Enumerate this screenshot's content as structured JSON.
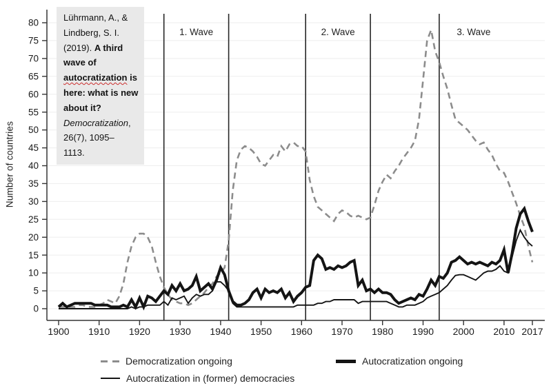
{
  "figure": {
    "background": "#ffffff"
  },
  "citation": {
    "bg_color": "#e9e9e9",
    "lines": [
      [
        {
          "t": "Lührmann, A., &"
        }
      ],
      [
        {
          "t": "Lindberg, S. I."
        }
      ],
      [
        {
          "t": "(2019). "
        },
        {
          "t": "A third",
          "b": true
        }
      ],
      [
        {
          "t": "wave of",
          "b": true
        }
      ],
      [
        {
          "t": "autocratization",
          "b": true,
          "sq": true
        },
        {
          "t": " is",
          "b": true
        }
      ],
      [
        {
          "t": "here: what is new",
          "b": true
        }
      ],
      [
        {
          "t": "about it?",
          "b": true
        }
      ],
      [
        {
          "t": "Democratization",
          "i": true
        },
        {
          "t": ","
        }
      ],
      [
        {
          "t": "26(7), 1095–"
        }
      ],
      [
        {
          "t": "1113."
        }
      ]
    ]
  },
  "legend": {
    "items": [
      {
        "label": "Democratization ongoing",
        "style": "dashed"
      },
      {
        "label": "Autocratization ongoing",
        "style": "thick"
      },
      {
        "label": "Autocratization in (former) democracies",
        "style": "thin"
      }
    ]
  },
  "chart_data": {
    "type": "line",
    "title": "",
    "xlabel": "",
    "ylabel": "Number of countries",
    "grid": true,
    "grid_color": "#ededed",
    "axis_color": "#333333",
    "ylim": [
      0,
      80
    ],
    "x_range": {
      "start": 1900,
      "end": 2017,
      "step": 1
    },
    "x_ticks": [
      1900,
      1910,
      1920,
      1930,
      1940,
      1950,
      1960,
      1970,
      1980,
      1990,
      2000,
      2010,
      2017
    ],
    "y_ticks": [
      0,
      5,
      10,
      15,
      20,
      25,
      30,
      35,
      40,
      45,
      50,
      55,
      60,
      65,
      70,
      75,
      80
    ],
    "wave_dividers": [
      {
        "year": 1926
      },
      {
        "year": 1942
      },
      {
        "year": 1961
      },
      {
        "year": 1977
      },
      {
        "year": 1994
      }
    ],
    "wave_labels": [
      {
        "text": "1. Wave",
        "between": [
          1926,
          1942
        ]
      },
      {
        "text": "2. Wave",
        "between": [
          1961,
          1977
        ]
      },
      {
        "text": "3. Wave",
        "between": [
          1994,
          2011
        ]
      }
    ],
    "legend_position": "bottom",
    "series": [
      {
        "name": "Democratization ongoing",
        "slug": "democratization-ongoing",
        "line": "dashed",
        "color": "#8c8c8c",
        "width": 2.6,
        "dash": "9 6",
        "values": [
          0.5,
          0.5,
          0.5,
          0.5,
          0.5,
          1,
          1,
          0.5,
          0.5,
          0.5,
          1,
          1.5,
          2.5,
          2,
          1.5,
          3.5,
          7,
          13,
          17.5,
          20,
          21,
          21,
          20,
          17.5,
          13,
          9,
          6,
          4,
          2.5,
          2,
          1.5,
          1.5,
          1,
          1.5,
          2.5,
          3.5,
          4.5,
          6,
          7,
          9,
          10,
          11.5,
          19,
          33,
          41.5,
          44.5,
          45.5,
          45,
          44,
          42.5,
          40.5,
          40,
          41.5,
          43,
          42.5,
          45.5,
          44,
          46,
          46.5,
          45.5,
          45.5,
          44,
          36,
          31.5,
          28.5,
          27.5,
          26.5,
          25.5,
          24.5,
          26.5,
          27.5,
          27,
          26,
          25.5,
          26,
          25.5,
          25,
          25.5,
          29,
          33,
          35.5,
          37.5,
          36.5,
          38.5,
          40,
          42,
          43.5,
          45,
          47,
          53,
          64,
          75,
          78,
          72,
          69,
          65,
          61.5,
          57,
          53,
          52,
          51,
          50,
          48.5,
          47,
          46,
          46.5,
          44.5,
          43,
          40.5,
          38.5,
          38,
          35.5,
          32.5,
          29.5,
          26,
          23,
          17.5,
          13
        ]
      },
      {
        "name": "Autocratization in (former) democracies",
        "slug": "autocratization-in-former-democracies",
        "line": "solid",
        "color": "#141414",
        "width": 1.9,
        "dash": null,
        "values": [
          0,
          0,
          0,
          0,
          0,
          0,
          0,
          0,
          0,
          0,
          0,
          0,
          0,
          0,
          0,
          0,
          0,
          0,
          0.5,
          0,
          0.5,
          0.5,
          1,
          1,
          1,
          1,
          2,
          1,
          3,
          2.5,
          3,
          3.5,
          1.5,
          3,
          4,
          3.5,
          4,
          4,
          5,
          7.5,
          7.5,
          6.5,
          5,
          1.5,
          0.5,
          0.5,
          0.5,
          0.5,
          0.5,
          0.5,
          0.5,
          0.5,
          0.5,
          0.5,
          0.5,
          0.5,
          0.5,
          0.5,
          0.5,
          1,
          1,
          1,
          1,
          1,
          1.5,
          1.5,
          2,
          2,
          2.5,
          2.5,
          2.5,
          2.5,
          2.5,
          2.5,
          1.5,
          2,
          2,
          2,
          2,
          2,
          2,
          2,
          1.5,
          1,
          0.5,
          0.5,
          1,
          1,
          1,
          1.5,
          2,
          3,
          3.5,
          4,
          4.5,
          5.5,
          6.5,
          8,
          9.3,
          9.5,
          9.5,
          9,
          8.5,
          8,
          9,
          10,
          10.5,
          10.5,
          11,
          12,
          10.5,
          10,
          14.5,
          19,
          22,
          20,
          18.5,
          17.5
        ]
      },
      {
        "name": "Autocratization ongoing",
        "slug": "autocratization-ongoing",
        "line": "solid",
        "color": "#141414",
        "width": 4,
        "dash": null,
        "values": [
          0.5,
          1.5,
          0.5,
          1,
          1.5,
          1.5,
          1.5,
          1.5,
          1.5,
          1,
          1,
          1,
          1,
          0.5,
          0.5,
          0.5,
          1,
          0.5,
          2.5,
          0.5,
          3,
          0.5,
          3.5,
          3,
          2,
          3.5,
          5,
          4,
          6.5,
          5,
          7,
          5,
          5.5,
          6.5,
          9,
          5,
          6,
          7,
          5.5,
          8,
          11.5,
          9.5,
          5,
          2,
          1,
          1,
          1.5,
          2.5,
          4.5,
          5.5,
          3,
          5.5,
          4.5,
          5,
          4.5,
          5.5,
          3,
          4.5,
          2,
          3.5,
          4.5,
          6,
          6.5,
          13.5,
          15,
          14,
          11,
          11.5,
          11,
          12,
          11.5,
          12,
          13,
          13.5,
          6.5,
          8,
          5,
          5.5,
          4.5,
          5.5,
          4.5,
          4.5,
          4,
          2.5,
          1.5,
          2,
          2.5,
          3,
          2.5,
          4,
          3.5,
          5.5,
          8,
          6.5,
          9,
          8.5,
          10,
          13,
          13.5,
          14.5,
          13.5,
          12.5,
          13,
          12.5,
          13,
          12.5,
          12,
          13,
          12.5,
          13.5,
          16.5,
          10,
          15.5,
          22.5,
          26.5,
          28,
          24.5,
          21.5
        ]
      }
    ]
  }
}
